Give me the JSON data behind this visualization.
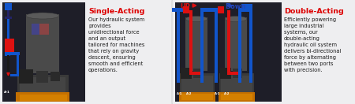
{
  "bg_color": "#0d1b2a",
  "panel1_bg": "#eeeef0",
  "panel2_bg": "#eeeef0",
  "panel1_photo_bg": "#2a2a35",
  "panel2_photo_bg": "#252530",
  "title1": "Single-Acting",
  "title1_color": "#dd0000",
  "title1_fs": 6.8,
  "body1": "Our hydraulic system\nprovides\nunidirectional force\nand an output\ntailored for machines\nthat rely on gravity\ndescent, ensuring\nsmooth and efficient\noperations.",
  "body1_color": "#1a1a1a",
  "body1_fs": 4.8,
  "title2": "Double-Acting",
  "title2_color": "#dd0000",
  "title2_fs": 6.8,
  "body2": "Efficiently powering\nlarge industrial\nsystems, our\ndouble-acting\nhydraulic oil system\ndelivers bi-directional\nforce by alternating\nbetween two ports\nwith precision.",
  "body2_color": "#1a1a1a",
  "body2_fs": 4.8,
  "red": "#dd1111",
  "blue": "#1155cc",
  "dark_blue": "#0a1a66",
  "up_color": "#dd1111",
  "down_color": "#2244bb",
  "label_up": "UP",
  "label_down": "Down"
}
